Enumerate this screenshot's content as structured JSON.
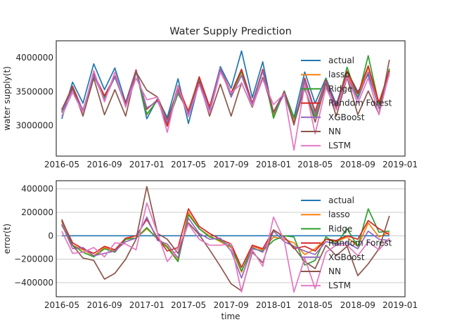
{
  "chart_data": [
    {
      "type": "line",
      "title": "Water Supply Prediction",
      "xlabel": "",
      "ylabel": "water supply(t)",
      "ylim": [
        2550000,
        4250000
      ],
      "yticks": [
        3000000,
        3500000,
        4000000
      ],
      "ytick_labels": [
        "3000000",
        "3500000",
        "4000000"
      ],
      "xticks": [
        "2016-05",
        "2016-09",
        "2017-01",
        "2017-05",
        "2017-09",
        "2018-01",
        "2018-05",
        "2018-09",
        "2019-01"
      ],
      "xlim": [
        "2016-04-15",
        "2019-01-15"
      ],
      "grid": false,
      "legend": "right",
      "x": [
        "2016-05",
        "2016-06",
        "2016-07",
        "2016-08",
        "2016-09",
        "2016-10",
        "2016-11",
        "2016-12",
        "2017-01",
        "2017-02",
        "2017-03",
        "2017-04",
        "2017-05",
        "2017-06",
        "2017-07",
        "2017-08",
        "2017-09",
        "2017-10",
        "2017-11",
        "2017-12",
        "2018-01",
        "2018-02",
        "2018-03",
        "2018-04",
        "2018-05",
        "2018-06",
        "2018-07",
        "2018-08",
        "2018-09",
        "2018-10",
        "2018-11",
        "2018-12"
      ],
      "series": [
        {
          "name": "actual",
          "color": "#1f77b4",
          "values": [
            3100000,
            3640000,
            3330000,
            3910000,
            3530000,
            3850000,
            3340000,
            3820000,
            3100000,
            3400000,
            3120000,
            3690000,
            3030000,
            3640000,
            3260000,
            3870000,
            3550000,
            4100000,
            3410000,
            3940000,
            3150000,
            3510000,
            3120000,
            3790000,
            3330000,
            3700000,
            3310000,
            3800000,
            3500000,
            3750000,
            3280000,
            3800000
          ]
        },
        {
          "name": "lasso",
          "color": "#ff7f0e",
          "values": [
            3220000,
            3560000,
            3210000,
            3740000,
            3430000,
            3720000,
            3320000,
            3800000,
            3160000,
            3380000,
            3030000,
            3480000,
            3230000,
            3700000,
            3260000,
            3820000,
            3450000,
            3790000,
            3320000,
            3820000,
            3140000,
            3480000,
            3060000,
            3630000,
            3220000,
            3670000,
            3260000,
            3790000,
            3410000,
            3860000,
            3270000,
            3830000
          ]
        },
        {
          "name": "Ridge",
          "color": "#2ca02c",
          "values": [
            3190000,
            3560000,
            3190000,
            3730000,
            3420000,
            3710000,
            3310000,
            3800000,
            3170000,
            3370000,
            3020000,
            3470000,
            3210000,
            3700000,
            3250000,
            3830000,
            3460000,
            3800000,
            3300000,
            3810000,
            3110000,
            3510000,
            3110000,
            3540000,
            3120000,
            3690000,
            3240000,
            3860000,
            3410000,
            4030000,
            3310000,
            3840000
          ]
        },
        {
          "name": "Random Forest",
          "color": "#d62728",
          "values": [
            3230000,
            3580000,
            3220000,
            3760000,
            3440000,
            3730000,
            3320000,
            3820000,
            3240000,
            3380000,
            2990000,
            3590000,
            3200000,
            3720000,
            3280000,
            3840000,
            3480000,
            3830000,
            3330000,
            3830000,
            3200000,
            3500000,
            3010000,
            3700000,
            3200000,
            3670000,
            3270000,
            3800000,
            3470000,
            3880000,
            3340000,
            3810000
          ]
        },
        {
          "name": "XGBoost",
          "color": "#9467bd",
          "values": [
            3200000,
            3530000,
            3230000,
            3740000,
            3380000,
            3720000,
            3290000,
            3800000,
            3260000,
            3360000,
            3050000,
            3500000,
            3180000,
            3660000,
            3230000,
            3850000,
            3420000,
            3740000,
            3310000,
            3800000,
            3190000,
            3460000,
            3030000,
            3660000,
            3170000,
            3650000,
            3240000,
            3740000,
            3390000,
            3790000,
            3250000,
            3760000
          ]
        },
        {
          "name": "NN",
          "color": "#8c564b",
          "values": [
            3240000,
            3560000,
            3140000,
            3700000,
            3160000,
            3530000,
            3140000,
            3790000,
            3520000,
            3420000,
            3090000,
            3540000,
            3140000,
            3650000,
            3140000,
            3610000,
            3140000,
            3630000,
            3270000,
            3710000,
            3200000,
            3500000,
            3020000,
            3570000,
            3050000,
            3620000,
            3140000,
            3710000,
            3160000,
            3510000,
            3170000,
            3970000
          ]
        },
        {
          "name": "LSTM",
          "color": "#e377c2",
          "values": [
            3140000,
            3490000,
            3190000,
            3810000,
            3350000,
            3790000,
            3270000,
            3700000,
            3380000,
            3420000,
            2900000,
            3580000,
            3130000,
            3610000,
            3180000,
            3790000,
            3480000,
            3620000,
            3290000,
            3680000,
            3310000,
            3470000,
            2640000,
            3600000,
            2880000,
            3560000,
            3230000,
            3720000,
            3330000,
            3700000,
            3160000,
            3780000
          ]
        }
      ]
    },
    {
      "type": "line",
      "title": "",
      "xlabel": "time",
      "ylabel": "error(t)",
      "ylim": [
        -520000,
        470000
      ],
      "yticks": [
        -400000,
        -200000,
        0,
        200000,
        400000
      ],
      "ytick_labels": [
        "−400000",
        "−200000",
        "0",
        "200000",
        "400000"
      ],
      "xticks": [
        "2016-05",
        "2016-09",
        "2017-01",
        "2017-05",
        "2017-09",
        "2018-01",
        "2018-05",
        "2018-09",
        "2019-01"
      ],
      "xlim": [
        "2016-04-15",
        "2019-01-15"
      ],
      "grid": true,
      "legend": "right",
      "x": [
        "2016-05",
        "2016-06",
        "2016-07",
        "2016-08",
        "2016-09",
        "2016-10",
        "2016-11",
        "2016-12",
        "2017-01",
        "2017-02",
        "2017-03",
        "2017-04",
        "2017-05",
        "2017-06",
        "2017-07",
        "2017-08",
        "2017-09",
        "2017-10",
        "2017-11",
        "2017-12",
        "2018-01",
        "2018-02",
        "2018-03",
        "2018-04",
        "2018-05",
        "2018-06",
        "2018-07",
        "2018-08",
        "2018-09",
        "2018-10",
        "2018-11",
        "2018-12"
      ],
      "series": [
        {
          "name": "actual",
          "color": "#1f77b4",
          "values": [
            0,
            0,
            0,
            0,
            0,
            0,
            0,
            0,
            0,
            0,
            0,
            0,
            0,
            0,
            0,
            0,
            0,
            0,
            0,
            0,
            0,
            0,
            0,
            0,
            0,
            0,
            0,
            0,
            0,
            0,
            0,
            0
          ]
        },
        {
          "name": "lasso",
          "color": "#ff7f0e",
          "values": [
            120000,
            -80000,
            -120000,
            -170000,
            -100000,
            -130000,
            -20000,
            -20000,
            60000,
            -20000,
            -90000,
            -210000,
            200000,
            60000,
            0,
            -50000,
            -100000,
            -310000,
            -90000,
            -120000,
            -10000,
            -30000,
            -60000,
            -160000,
            -110000,
            -30000,
            -50000,
            -10000,
            -90000,
            110000,
            -10000,
            30000
          ]
        },
        {
          "name": "Ridge",
          "color": "#2ca02c",
          "values": [
            90000,
            -80000,
            -140000,
            -180000,
            -110000,
            -140000,
            -30000,
            -20000,
            70000,
            -30000,
            -100000,
            -220000,
            180000,
            60000,
            -10000,
            -40000,
            -90000,
            -300000,
            -110000,
            -130000,
            -40000,
            0,
            -10000,
            -250000,
            -210000,
            -10000,
            -70000,
            60000,
            -90000,
            230000,
            30000,
            40000
          ]
        },
        {
          "name": "Random Forest",
          "color": "#d62728",
          "values": [
            130000,
            -60000,
            -110000,
            -150000,
            -90000,
            -120000,
            -20000,
            0,
            140000,
            -20000,
            -130000,
            -100000,
            230000,
            80000,
            20000,
            -30000,
            -70000,
            -270000,
            -80000,
            -110000,
            50000,
            -10000,
            -110000,
            -90000,
            -130000,
            -30000,
            -40000,
            0,
            -30000,
            130000,
            60000,
            10000
          ]
        },
        {
          "name": "XGBoost",
          "color": "#9467bd",
          "values": [
            100000,
            -110000,
            -100000,
            -170000,
            -150000,
            -130000,
            -50000,
            -20000,
            160000,
            -40000,
            -70000,
            -190000,
            150000,
            20000,
            -30000,
            -20000,
            -130000,
            -360000,
            -100000,
            -140000,
            40000,
            -50000,
            -90000,
            -130000,
            -160000,
            -50000,
            -70000,
            -60000,
            -110000,
            40000,
            -30000,
            -40000
          ]
        },
        {
          "name": "NN",
          "color": "#8c564b",
          "values": [
            140000,
            -80000,
            -190000,
            -210000,
            -370000,
            -320000,
            -200000,
            -30000,
            420000,
            20000,
            -30000,
            -150000,
            110000,
            10000,
            -120000,
            -260000,
            -410000,
            -470000,
            -140000,
            -230000,
            50000,
            -10000,
            -100000,
            -220000,
            -280000,
            -80000,
            -170000,
            -90000,
            -340000,
            -240000,
            -110000,
            170000
          ]
        },
        {
          "name": "LSTM",
          "color": "#e377c2",
          "values": [
            40000,
            -150000,
            -140000,
            -100000,
            -180000,
            -60000,
            -70000,
            -120000,
            280000,
            20000,
            -220000,
            -110000,
            100000,
            -30000,
            -80000,
            -80000,
            -70000,
            -480000,
            -120000,
            -260000,
            160000,
            -40000,
            -480000,
            -190000,
            -450000,
            -140000,
            -80000,
            -80000,
            -170000,
            -50000,
            -120000,
            -20000
          ]
        }
      ]
    }
  ]
}
